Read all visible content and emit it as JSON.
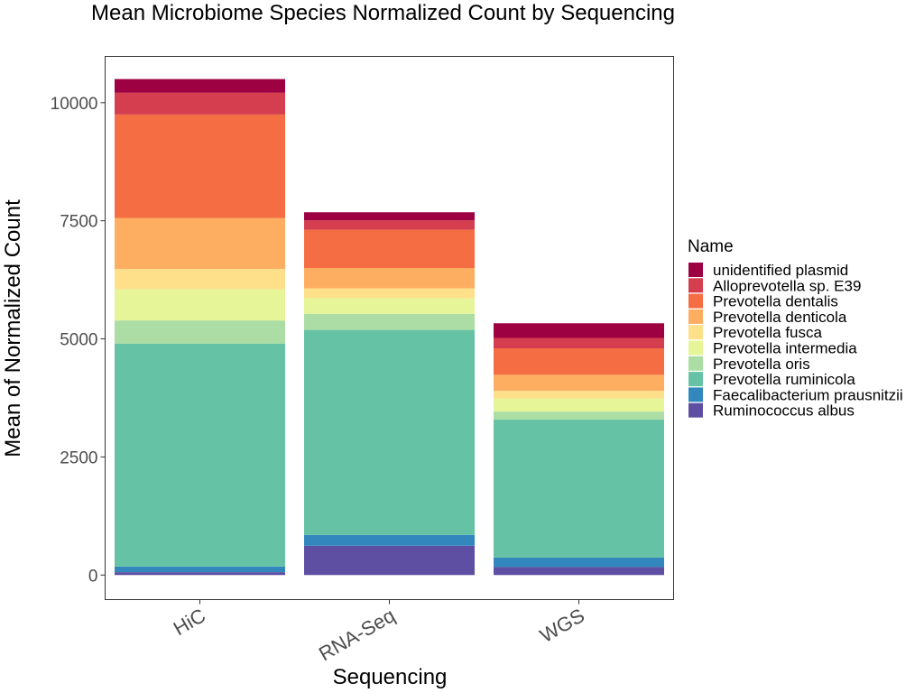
{
  "chart_data": {
    "type": "bar",
    "stacked": true,
    "title": "Mean Microbiome Species Normalized Count by Sequencing",
    "xlabel": "Sequencing",
    "ylabel": "Mean of Normalized Count",
    "categories": [
      "HiC",
      "RNA-Seq",
      "WGS"
    ],
    "ylim": [
      -520,
      10980
    ],
    "yticks": [
      0,
      2500,
      5000,
      7500,
      10000
    ],
    "ytick_labels": [
      "0",
      "2500",
      "5000",
      "7500",
      "10000"
    ],
    "legend_title": "Name",
    "legend_position": "right",
    "grid": false,
    "series": [
      {
        "name": "Ruminococcus albus",
        "color": "#5e4fa2",
        "values": [
          60,
          620,
          170
        ]
      },
      {
        "name": "Faecalibacterium prausnitzii",
        "color": "#3288bd",
        "values": [
          120,
          230,
          200
        ]
      },
      {
        "name": "Prevotella ruminicola",
        "color": "#66c2a5",
        "values": [
          4720,
          4340,
          2920
        ]
      },
      {
        "name": "Prevotella oris",
        "color": "#abdda4",
        "values": [
          490,
          340,
          170
        ]
      },
      {
        "name": "Prevotella intermedia",
        "color": "#e6f598",
        "values": [
          660,
          330,
          280
        ]
      },
      {
        "name": "Prevotella fusca",
        "color": "#fee08b",
        "values": [
          430,
          210,
          160
        ]
      },
      {
        "name": "Prevotella denticola",
        "color": "#fdae61",
        "values": [
          1080,
          430,
          340
        ]
      },
      {
        "name": "Prevotella dentalis",
        "color": "#f46d43",
        "values": [
          2190,
          810,
          560
        ]
      },
      {
        "name": "Alloprevotella sp. E39",
        "color": "#d53e4f",
        "values": [
          460,
          200,
          220
        ]
      },
      {
        "name": "unidentified plasmid",
        "color": "#9e0142",
        "values": [
          290,
          170,
          310
        ]
      }
    ]
  }
}
